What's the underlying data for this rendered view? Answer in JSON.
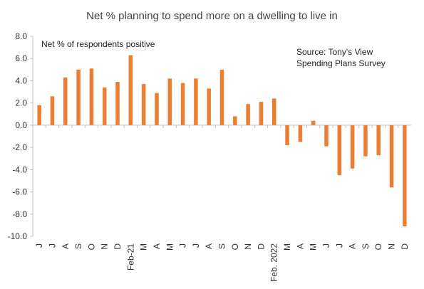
{
  "chart_data": {
    "type": "bar",
    "title": "Net % planning to spend more on a dwelling to live in",
    "ylabel": "",
    "xlabel": "",
    "ylim": [
      -10,
      8
    ],
    "yticks": [
      "8.0",
      "6.0",
      "4.0",
      "2.0",
      "0.0",
      "-2.0",
      "-4.0",
      "-6.0",
      "-8.0",
      "-10.0"
    ],
    "annotation_left": "Net % of respondents positive",
    "annotation_right": [
      "Source: Tony's View",
      "Spending Plans Survey"
    ],
    "categories": [
      "J",
      "J",
      "A",
      "S",
      "O",
      "N",
      "D",
      "Feb-21",
      "M",
      "A",
      "M",
      "J",
      "J",
      "A",
      "S",
      "O",
      "N",
      "D",
      "Feb. 2022",
      "M",
      "A",
      "M",
      "J",
      "J",
      "A",
      "S",
      "O",
      "N",
      "D"
    ],
    "values": [
      1.8,
      2.6,
      4.3,
      5.0,
      5.1,
      3.4,
      3.9,
      6.3,
      3.7,
      2.9,
      4.2,
      3.8,
      4.2,
      3.3,
      5.0,
      0.8,
      1.9,
      2.1,
      2.4,
      -1.8,
      -1.5,
      0.4,
      -1.9,
      -4.5,
      -3.9,
      -2.8,
      -2.7,
      -5.6,
      -9.1
    ],
    "bar_color": "#ED7D31",
    "grid": false
  }
}
